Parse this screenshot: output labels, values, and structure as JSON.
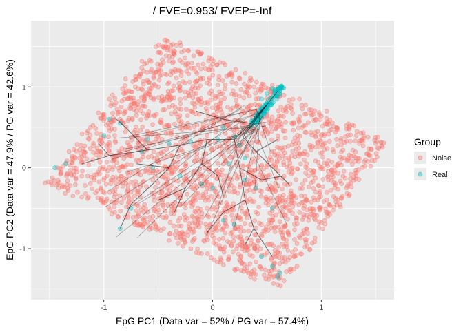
{
  "chart_data": {
    "type": "scatter",
    "title": "/ FVE=0.953/ FVEP=-Inf",
    "xlabel": "EpG PC1 (Data var = 52% / PG var = 57.4%)",
    "ylabel": "EpG PC2 (Data var = 47.9% / PG var = 42.6%)",
    "xlim": [
      -1.67,
      1.67
    ],
    "ylim": [
      -1.63,
      1.82
    ],
    "x_ticks": [
      -1,
      0,
      1
    ],
    "x_tick_labels": [
      "-1",
      "0",
      "1"
    ],
    "y_ticks": [
      -1,
      0,
      1
    ],
    "y_tick_labels": [
      "-1",
      "0",
      "1"
    ],
    "grid": true,
    "legend": {
      "title": "Group",
      "placement": "right",
      "entries": [
        {
          "label": "Noise",
          "color": "#F8766D"
        },
        {
          "label": "Real",
          "color": "#00BFC4"
        }
      ]
    },
    "point_region_polygon": [
      [
        -1.55,
        -0.2
      ],
      [
        -0.43,
        1.63
      ],
      [
        1.62,
        0.32
      ],
      [
        0.62,
        -1.52
      ]
    ],
    "series": [
      {
        "name": "Noise",
        "color": "#F8766D",
        "points": [
          [
            -1.43,
            0.0
          ],
          [
            -1.32,
            0.2
          ],
          [
            -1.2,
            0.42
          ],
          [
            -1.05,
            0.68
          ],
          [
            -0.92,
            0.9
          ],
          [
            -0.8,
            1.1
          ],
          [
            -0.65,
            1.32
          ],
          [
            -0.52,
            1.5
          ],
          [
            -0.3,
            1.55
          ],
          [
            -0.1,
            1.42
          ],
          [
            0.1,
            1.3
          ],
          [
            0.3,
            1.17
          ],
          [
            0.55,
            1.02
          ],
          [
            0.8,
            0.85
          ],
          [
            1.05,
            0.7
          ],
          [
            1.3,
            0.52
          ],
          [
            1.52,
            0.38
          ],
          [
            1.45,
            0.15
          ],
          [
            1.3,
            -0.12
          ],
          [
            1.15,
            -0.4
          ],
          [
            1.0,
            -0.68
          ],
          [
            0.85,
            -0.98
          ],
          [
            0.72,
            -1.25
          ],
          [
            0.6,
            -1.45
          ],
          [
            0.35,
            -1.35
          ],
          [
            0.1,
            -1.2
          ],
          [
            -0.15,
            -1.05
          ],
          [
            -0.4,
            -0.9
          ],
          [
            -0.65,
            -0.72
          ],
          [
            -0.9,
            -0.55
          ],
          [
            -1.15,
            -0.38
          ],
          [
            -1.38,
            -0.22
          ],
          [
            -1.1,
            0.1
          ],
          [
            -0.9,
            0.4
          ],
          [
            -0.7,
            0.7
          ],
          [
            -0.5,
            1.0
          ],
          [
            -0.3,
            1.2
          ],
          [
            -0.05,
            1.05
          ],
          [
            0.2,
            0.9
          ],
          [
            0.45,
            0.7
          ],
          [
            0.75,
            0.55
          ],
          [
            1.0,
            0.4
          ],
          [
            1.2,
            0.22
          ],
          [
            1.1,
            -0.05
          ],
          [
            0.95,
            -0.3
          ],
          [
            0.8,
            -0.55
          ],
          [
            0.65,
            -0.8
          ],
          [
            0.5,
            -1.05
          ],
          [
            0.25,
            -0.95
          ],
          [
            0.0,
            -0.8
          ],
          [
            -0.25,
            -0.65
          ],
          [
            -0.5,
            -0.45
          ],
          [
            -0.75,
            -0.3
          ],
          [
            -1.0,
            -0.15
          ],
          [
            -0.8,
            0.15
          ],
          [
            -0.6,
            0.45
          ],
          [
            -0.4,
            0.75
          ],
          [
            -0.2,
            0.95
          ],
          [
            0.05,
            0.75
          ],
          [
            0.3,
            0.55
          ],
          [
            0.6,
            0.35
          ],
          [
            0.85,
            0.2
          ],
          [
            0.7,
            -0.05
          ],
          [
            0.55,
            -0.3
          ],
          [
            0.4,
            -0.55
          ],
          [
            0.2,
            -0.7
          ],
          [
            -0.05,
            -0.5
          ],
          [
            -0.3,
            -0.3
          ],
          [
            -0.55,
            -0.15
          ],
          [
            -0.45,
            0.2
          ],
          [
            -0.25,
            0.5
          ],
          [
            -0.05,
            0.4
          ],
          [
            0.15,
            0.2
          ],
          [
            0.35,
            0.05
          ],
          [
            0.2,
            -0.25
          ],
          [
            -0.1,
            -0.1
          ],
          [
            -0.6,
            -0.55
          ],
          [
            -0.85,
            0.6
          ],
          [
            0.95,
            0.6
          ],
          [
            0.45,
            -1.25
          ],
          [
            -1.25,
            -0.05
          ],
          [
            -0.35,
            1.4
          ],
          [
            1.35,
            0.3
          ],
          [
            0.75,
            -1.1
          ],
          [
            -0.2,
            -1.0
          ],
          [
            0.6,
            1.0
          ],
          [
            1.25,
            -0.2
          ],
          [
            -0.95,
            0.85
          ],
          [
            0.1,
            -0.55
          ],
          [
            0.85,
            -0.35
          ],
          [
            -0.7,
            0.25
          ],
          [
            0.4,
            0.85
          ],
          [
            -0.15,
            0.25
          ],
          [
            1.05,
            0.05
          ],
          [
            -0.45,
            -0.75
          ],
          [
            0.25,
            1.1
          ]
        ]
      },
      {
        "name": "Real",
        "color": "#00BFC4",
        "points": [
          [
            0.55,
            0.98
          ],
          [
            0.6,
            0.97
          ],
          [
            0.5,
            0.92
          ],
          [
            0.45,
            0.85
          ],
          [
            0.62,
            1.0
          ],
          [
            0.57,
            0.93
          ],
          [
            0.48,
            0.78
          ],
          [
            0.4,
            0.6
          ],
          [
            0.35,
            0.5
          ],
          [
            -1.45,
            0.0
          ],
          [
            -1.35,
            0.05
          ],
          [
            -0.95,
            0.6
          ],
          [
            -0.85,
            0.55
          ],
          [
            -0.6,
            0.35
          ],
          [
            -0.4,
            0.3
          ],
          [
            -0.2,
            0.32
          ],
          [
            0.05,
            0.35
          ],
          [
            0.2,
            0.38
          ],
          [
            -0.55,
            0.0
          ],
          [
            -0.3,
            -0.1
          ],
          [
            0.0,
            -0.25
          ],
          [
            -0.75,
            -0.5
          ],
          [
            -0.85,
            -0.75
          ],
          [
            0.1,
            -0.65
          ],
          [
            0.2,
            -0.7
          ],
          [
            0.55,
            -1.22
          ],
          [
            0.62,
            -1.3
          ],
          [
            0.6,
            -1.35
          ],
          [
            0.45,
            -1.1
          ],
          [
            0.4,
            -0.25
          ],
          [
            0.55,
            -0.5
          ],
          [
            0.3,
            -0.15
          ],
          [
            0.15,
            0.05
          ],
          [
            0.25,
            0.28
          ],
          [
            0.3,
            0.12
          ],
          [
            -1.0,
            0.4
          ],
          [
            -0.65,
            0.2
          ],
          [
            0.5,
            0.7
          ],
          [
            0.1,
            0.5
          ],
          [
            -0.1,
            -0.2
          ]
        ]
      }
    ],
    "principal_graph_edges": [
      [
        [
          0.5,
          0.78
        ],
        [
          0.35,
          0.55
        ]
      ],
      [
        [
          0.5,
          0.78
        ],
        [
          0.38,
          0.62
        ]
      ],
      [
        [
          0.5,
          0.78
        ],
        [
          0.3,
          0.45
        ]
      ],
      [
        [
          0.5,
          0.78
        ],
        [
          0.28,
          0.38
        ]
      ],
      [
        [
          0.35,
          0.55
        ],
        [
          0.2,
          0.35
        ]
      ],
      [
        [
          0.2,
          0.35
        ],
        [
          -0.05,
          0.35
        ]
      ],
      [
        [
          -0.05,
          0.35
        ],
        [
          -0.3,
          0.28
        ]
      ],
      [
        [
          -0.3,
          0.28
        ],
        [
          -0.6,
          0.22
        ]
      ],
      [
        [
          -0.6,
          0.22
        ],
        [
          -0.95,
          0.15
        ]
      ],
      [
        [
          -0.95,
          0.15
        ],
        [
          -1.2,
          0.05
        ]
      ],
      [
        [
          -0.3,
          0.28
        ],
        [
          -0.4,
          0.0
        ]
      ],
      [
        [
          -0.4,
          0.0
        ],
        [
          -0.55,
          -0.2
        ]
      ],
      [
        [
          -0.55,
          -0.2
        ],
        [
          -0.75,
          -0.45
        ]
      ],
      [
        [
          -0.75,
          -0.45
        ],
        [
          -0.85,
          -0.75
        ]
      ],
      [
        [
          0.2,
          0.35
        ],
        [
          0.25,
          0.0
        ]
      ],
      [
        [
          0.25,
          0.0
        ],
        [
          0.3,
          -0.4
        ]
      ],
      [
        [
          0.3,
          -0.4
        ],
        [
          0.38,
          -0.75
        ]
      ],
      [
        [
          0.38,
          -0.75
        ],
        [
          0.55,
          -1.1
        ]
      ],
      [
        [
          0.25,
          0.0
        ],
        [
          0.45,
          -0.15
        ]
      ],
      [
        [
          0.3,
          -0.4
        ],
        [
          0.1,
          -0.55
        ]
      ],
      [
        [
          0.1,
          -0.55
        ],
        [
          -0.05,
          -0.8
        ]
      ],
      [
        [
          -0.05,
          0.35
        ],
        [
          -0.1,
          0.05
        ]
      ],
      [
        [
          -0.1,
          0.05
        ],
        [
          -0.25,
          -0.25
        ]
      ],
      [
        [
          -0.25,
          -0.25
        ],
        [
          -0.35,
          -0.55
        ]
      ],
      [
        [
          0.28,
          0.38
        ],
        [
          0.4,
          0.2
        ]
      ],
      [
        [
          0.4,
          0.2
        ],
        [
          0.55,
          0.0
        ]
      ],
      [
        [
          0.4,
          0.2
        ],
        [
          0.6,
          0.35
        ]
      ],
      [
        [
          -0.6,
          0.22
        ],
        [
          -0.8,
          0.5
        ]
      ],
      [
        [
          -0.8,
          0.5
        ],
        [
          -0.9,
          0.62
        ]
      ],
      [
        [
          0.5,
          0.78
        ],
        [
          0.6,
          0.95
        ]
      ],
      [
        [
          -0.1,
          0.05
        ],
        [
          0.05,
          -0.1
        ]
      ],
      [
        [
          0.45,
          -0.15
        ],
        [
          0.65,
          -0.1
        ]
      ],
      [
        [
          -0.4,
          0.0
        ],
        [
          -0.7,
          0.05
        ]
      ],
      [
        [
          0.38,
          -0.75
        ],
        [
          0.3,
          -0.95
        ]
      ],
      [
        [
          0.35,
          0.55
        ],
        [
          0.1,
          0.6
        ]
      ],
      [
        [
          0.1,
          0.6
        ],
        [
          -0.15,
          0.7
        ]
      ],
      [
        [
          -0.25,
          -0.25
        ],
        [
          -0.5,
          -0.4
        ]
      ],
      [
        [
          0.05,
          -0.1
        ],
        [
          0.1,
          -0.35
        ]
      ],
      [
        [
          0.55,
          0.0
        ],
        [
          0.7,
          -0.2
        ]
      ],
      [
        [
          -0.95,
          0.15
        ],
        [
          -1.05,
          0.3
        ]
      ]
    ]
  }
}
